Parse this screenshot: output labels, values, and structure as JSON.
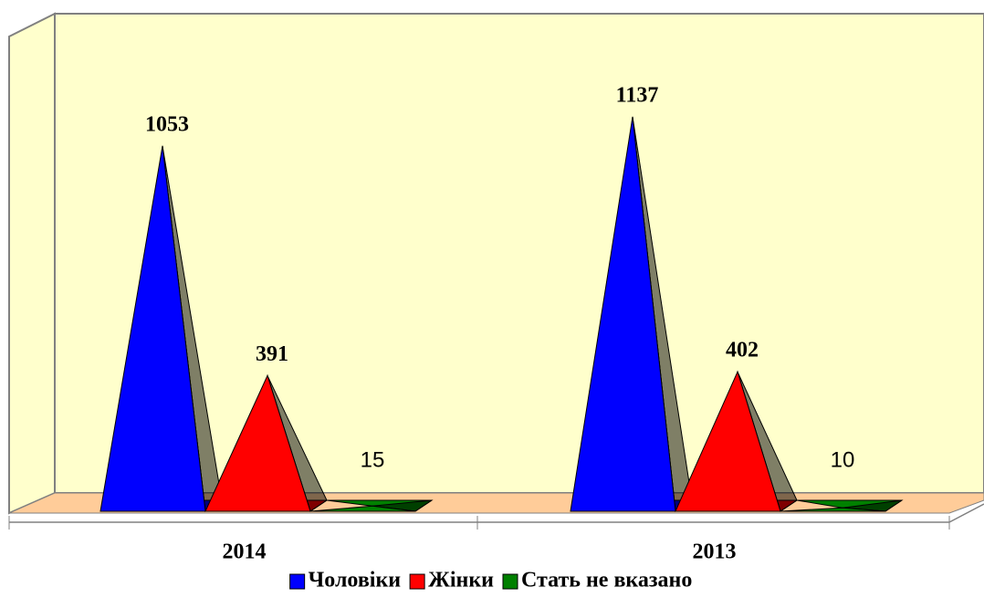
{
  "chart_data": {
    "type": "pyramid3d",
    "categories": [
      "2014",
      "2013"
    ],
    "series": [
      {
        "name": "Чоловіки",
        "color": "#0000ff",
        "values": [
          1053,
          1137
        ]
      },
      {
        "name": "Жінки",
        "color": "#ff0000",
        "values": [
          391,
          402
        ]
      },
      {
        "name": "Стать не вказано",
        "color": "#008000",
        "values": [
          15,
          10
        ]
      }
    ],
    "ylim": [
      0,
      1200
    ],
    "legend": "bottom"
  }
}
